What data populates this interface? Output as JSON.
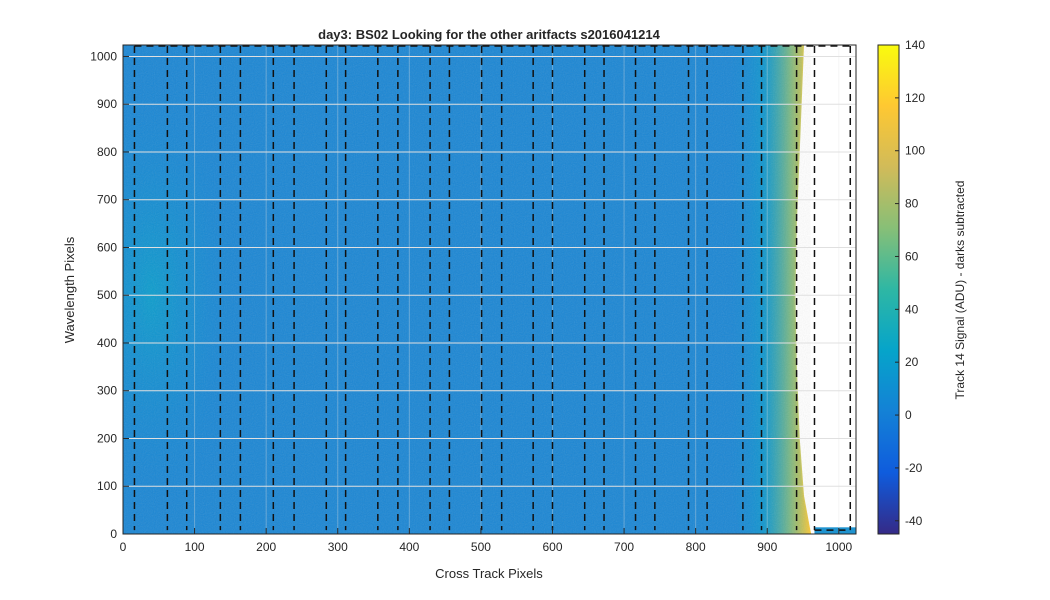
{
  "chart_data": {
    "type": "heatmap",
    "title": "day3: BS02  Looking for the other aritfacts  s2016041214",
    "xlabel": "Cross Track Pixels",
    "ylabel": "Wavelength Pixels",
    "xlim": [
      0,
      1024
    ],
    "ylim": [
      0,
      1024
    ],
    "x_ticks": [
      0,
      100,
      200,
      300,
      400,
      500,
      600,
      700,
      800,
      900,
      1000
    ],
    "y_ticks": [
      0,
      100,
      200,
      300,
      400,
      500,
      600,
      700,
      800,
      900,
      1000
    ],
    "grid": "on",
    "colormap": "parula",
    "colorbar": {
      "label": "Track 14 Signal (ADU) - darks subtracted",
      "range": [
        -45,
        140
      ],
      "ticks": [
        -40,
        -20,
        0,
        20,
        40,
        60,
        80,
        100,
        120,
        140
      ],
      "colors": [
        "#352a87",
        "#0f5cdd",
        "#1481d6",
        "#06a4ca",
        "#2eb7a4",
        "#87bf77",
        "#d1bb59",
        "#fec832",
        "#f9fb0e"
      ]
    },
    "signal_edge_x": [
      [
        0,
        960
      ],
      [
        15,
        958
      ],
      [
        80,
        950
      ],
      [
        200,
        944
      ],
      [
        350,
        940
      ],
      [
        500,
        938
      ],
      [
        650,
        940
      ],
      [
        800,
        944
      ],
      [
        950,
        948
      ],
      [
        1024,
        950
      ]
    ],
    "signal_values": {
      "background": 12,
      "center_glow_max": 25,
      "right_edge_max": 130,
      "unilluminated": 0
    },
    "dashed_boundaries_x": [
      16,
      62,
      89,
      136,
      164,
      210,
      239,
      284,
      311,
      356,
      384,
      429,
      456,
      501,
      529,
      573,
      600,
      645,
      672,
      716,
      743,
      790,
      816,
      866,
      892,
      941,
      966,
      1016
    ],
    "frame_top_y": 1024,
    "frame_bottom_y": 8,
    "dash_color": "#111111"
  }
}
